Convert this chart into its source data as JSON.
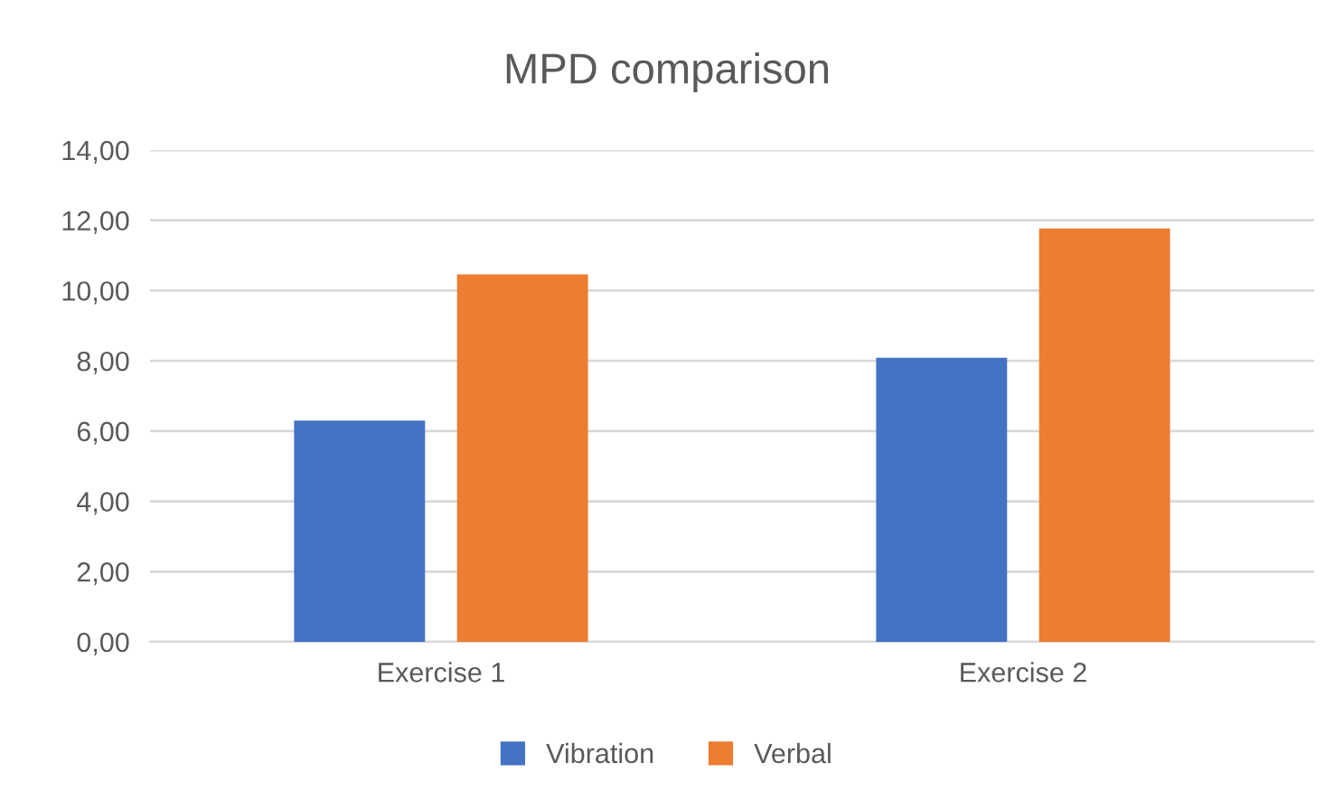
{
  "chart_data": {
    "type": "bar",
    "title": "MPD comparison",
    "categories": [
      "Exercise 1",
      "Exercise 2"
    ],
    "series": [
      {
        "name": "Vibration",
        "color": "#4472c4",
        "values": [
          6.3,
          8.09
        ]
      },
      {
        "name": "Verbal",
        "color": "#ed7d31",
        "values": [
          10.46,
          11.77
        ]
      }
    ],
    "ylim": [
      0,
      14
    ],
    "yticks": [
      {
        "value": 0,
        "label": "0,00"
      },
      {
        "value": 2,
        "label": "2,00"
      },
      {
        "value": 4,
        "label": "4,00"
      },
      {
        "value": 6,
        "label": "6,00"
      },
      {
        "value": 8,
        "label": "8,00"
      },
      {
        "value": 10,
        "label": "10,00"
      },
      {
        "value": 12,
        "label": "12,00"
      },
      {
        "value": 14,
        "label": "14,00"
      }
    ],
    "grid": "y",
    "legend": "bottom"
  }
}
